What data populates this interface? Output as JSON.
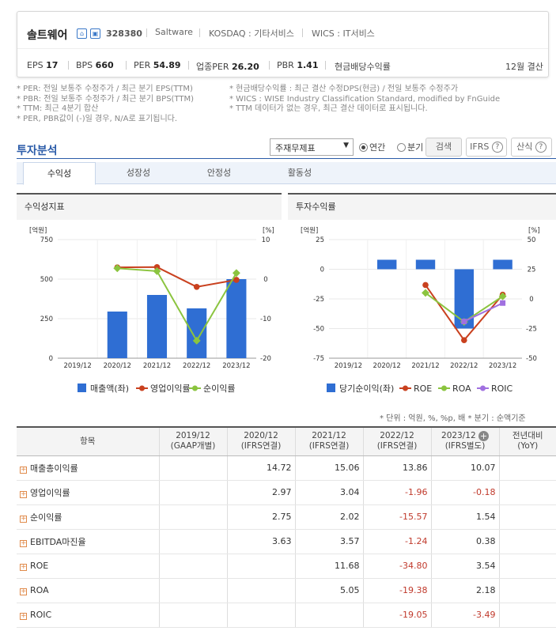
{
  "header": {
    "company": "솔트웨어",
    "code": "328380",
    "tags": [
      "Saltware",
      "KOSDAQ : 기타서비스",
      "WICS : IT서비스"
    ],
    "metrics": [
      {
        "label": "EPS",
        "value": "17"
      },
      {
        "label": "BPS",
        "value": "660"
      },
      {
        "label": "PER",
        "value": "54.89"
      },
      {
        "label": "업종PER",
        "value": "26.20"
      },
      {
        "label": "PBR",
        "value": "1.41"
      },
      {
        "label": "현금배당수익률",
        "value": ""
      }
    ],
    "fiscal": "12월 결산"
  },
  "notes": {
    "left": [
      "* PER: 전일 보통주 수정주가 / 최근 분기 EPS(TTM)",
      "* PBR: 전일 보통주 수정주가 / 최근 분기 BPS(TTM)",
      "* TTM: 최근 4분기 합산",
      "* PER, PBR값이 (-)일 경우, N/A로 표기됩니다."
    ],
    "right": [
      "* 현금배당수익률 : 최근 결산 수정DPS(현금) / 전일 보통주 수정주가",
      "* WICS : WISE Industry Classification Standard, modified by FnGuide",
      "* TTM 데이터가 없는 경우, 최근 결산 데이터로 표시됩니다."
    ]
  },
  "analysis": {
    "title": "투자분석",
    "select": "주재무제표",
    "radio_year": "연간",
    "radio_quarter": "분기",
    "search": "검색",
    "ifrs": "IFRS",
    "formula": "산식"
  },
  "tabs": [
    "수익성",
    "성장성",
    "안정성",
    "활동성"
  ],
  "chart_data": [
    {
      "type": "bar",
      "title": "수익성지표",
      "categories": [
        "2019/12",
        "2020/12",
        "2021/12",
        "2022/12",
        "2023/12"
      ],
      "left_unit": "[억원]",
      "right_unit": "[%]",
      "ylim_left": [
        0,
        750
      ],
      "ylim_right": [
        -20,
        10
      ],
      "left_ticks": [
        "750",
        "500",
        "250",
        "0"
      ],
      "right_ticks": [
        "10",
        "0",
        "-10",
        "-20"
      ],
      "series": [
        {
          "name": "매출액(좌)",
          "axis": "left",
          "kind": "bar",
          "color": "#2f6ed3",
          "values": [
            null,
            295,
            400,
            315,
            500
          ]
        },
        {
          "name": "영업이익률",
          "axis": "right",
          "kind": "line",
          "color": "#c9411f",
          "values": [
            null,
            2.97,
            3.04,
            -1.96,
            -0.18
          ]
        },
        {
          "name": "순이익률",
          "axis": "right",
          "kind": "line",
          "color": "#8bc43f",
          "values": [
            null,
            2.75,
            2.02,
            -15.57,
            1.54
          ]
        }
      ],
      "grid": true,
      "legend": "bottom"
    },
    {
      "type": "bar",
      "title": "투자수익률",
      "categories": [
        "2019/12",
        "2020/12",
        "2021/12",
        "2022/12",
        "2023/12"
      ],
      "left_unit": "[억원]",
      "right_unit": "[%]",
      "ylim_left": [
        -75,
        25
      ],
      "ylim_right": [
        -50,
        50
      ],
      "left_ticks": [
        "25",
        "0",
        "-25",
        "-50",
        "-75"
      ],
      "right_ticks": [
        "50",
        "25",
        "0",
        "-25",
        "-50"
      ],
      "series": [
        {
          "name": "당기순이익(좌)",
          "axis": "left",
          "kind": "bar",
          "color": "#2f6ed3",
          "values": [
            null,
            8,
            8,
            -50,
            8
          ]
        },
        {
          "name": "ROE",
          "axis": "right",
          "kind": "line",
          "color": "#c9411f",
          "values": [
            null,
            null,
            11.68,
            -34.8,
            3.54
          ]
        },
        {
          "name": "ROA",
          "axis": "right",
          "kind": "line",
          "color": "#8bc43f",
          "values": [
            null,
            null,
            5.05,
            -19.38,
            2.18
          ]
        },
        {
          "name": "ROIC",
          "axis": "right",
          "kind": "line",
          "color": "#a070e0",
          "values": [
            null,
            null,
            null,
            -19.05,
            -3.49
          ]
        }
      ],
      "grid": true,
      "legend": "bottom"
    }
  ],
  "unit_note": "* 단위 : 억원, %, %p, 배    * 분기 : 순액기준",
  "table": {
    "headers": [
      [
        "항목",
        ""
      ],
      [
        "2019/12",
        "(GAAP개별)"
      ],
      [
        "2020/12",
        "(IFRS연결)"
      ],
      [
        "2021/12",
        "(IFRS연결)"
      ],
      [
        "2022/12",
        "(IFRS연결)"
      ],
      [
        "2023/12",
        "(IFRS별도)"
      ],
      [
        "전년대비",
        "(YoY)"
      ]
    ],
    "rows": [
      {
        "label": "매출총이익률",
        "cells": [
          "",
          "14.72",
          "15.06",
          "13.86",
          "10.07",
          ""
        ]
      },
      {
        "label": "영업이익률",
        "cells": [
          "",
          "2.97",
          "3.04",
          "-1.96",
          "-0.18",
          ""
        ]
      },
      {
        "label": "순이익률",
        "cells": [
          "",
          "2.75",
          "2.02",
          "-15.57",
          "1.54",
          ""
        ]
      },
      {
        "label": "EBITDA마진율",
        "cells": [
          "",
          "3.63",
          "3.57",
          "-1.24",
          "0.38",
          ""
        ]
      },
      {
        "label": "ROE",
        "cells": [
          "",
          "",
          "11.68",
          "-34.80",
          "3.54",
          ""
        ]
      },
      {
        "label": "ROA",
        "cells": [
          "",
          "",
          "5.05",
          "-19.38",
          "2.18",
          ""
        ]
      },
      {
        "label": "ROIC",
        "cells": [
          "",
          "",
          "",
          "-19.05",
          "-3.49",
          ""
        ]
      }
    ]
  }
}
